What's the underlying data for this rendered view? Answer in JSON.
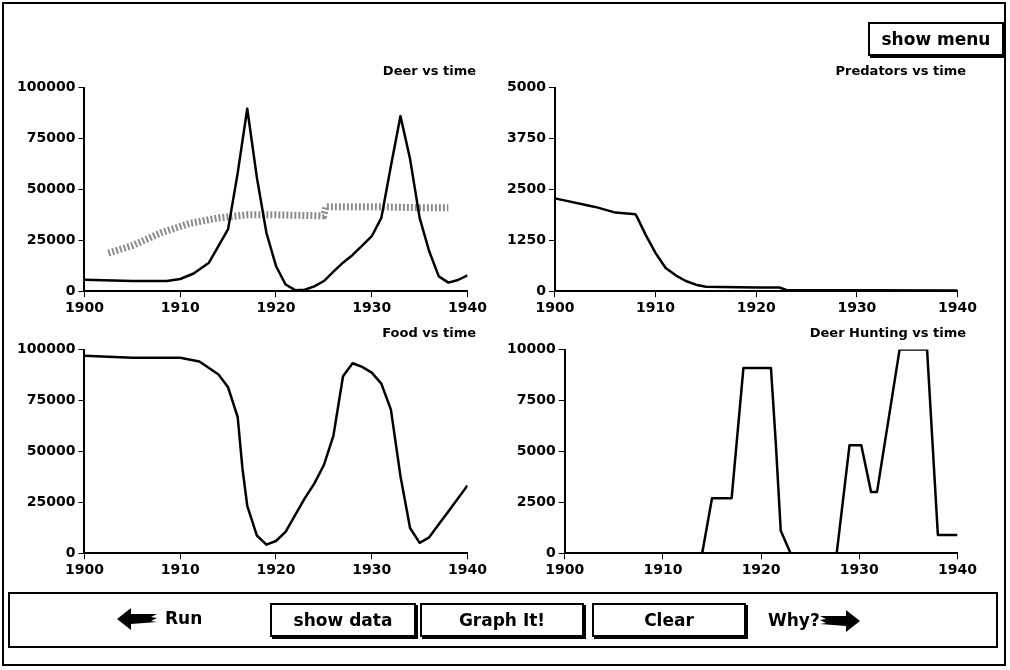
{
  "chart_data": [
    {
      "type": "line",
      "title": "Deer vs time",
      "xlim": [
        1900,
        1940
      ],
      "xticks": [
        1900,
        1910,
        1920,
        1930,
        1940
      ],
      "ylim": [
        0,
        100000
      ],
      "yticks": [
        0,
        25000,
        50000,
        75000,
        100000
      ],
      "marker": "none",
      "series": [
        {
          "color": "#000000",
          "line_style": "solid",
          "x": [
            1900,
            1905,
            1908.6,
            1910,
            1911.4,
            1913,
            1915,
            1916,
            1917,
            1918,
            1919,
            1920,
            1921,
            1922,
            1923,
            1924,
            1925,
            1926,
            1927,
            1928,
            1929,
            1930,
            1931,
            1932,
            1933,
            1934,
            1935,
            1936,
            1937,
            1938,
            1939,
            1940
          ],
          "values": [
            5600,
            5000,
            5000,
            6000,
            8700,
            14000,
            30500,
            58000,
            89600,
            56000,
            28700,
            12400,
            3300,
            500,
            700,
            2400,
            5000,
            9600,
            14000,
            17800,
            22400,
            27000,
            36000,
            61500,
            86000,
            65000,
            36000,
            19600,
            7300,
            4200,
            5500,
            7800
          ]
        },
        {
          "color": "#8c8c8c",
          "line_style": "dotted",
          "x": [
            1902.5,
            1905,
            1908,
            1911,
            1914,
            1917,
            1920,
            1925,
            1925.2,
            1930,
            1935,
            1938
          ],
          "values": [
            18700,
            22400,
            28700,
            33300,
            36000,
            37500,
            37500,
            37000,
            41500,
            41500,
            41000,
            41000
          ]
        }
      ]
    },
    {
      "type": "line",
      "title": "Predators vs time",
      "xlim": [
        1900,
        1940
      ],
      "xticks": [
        1900,
        1910,
        1920,
        1930,
        1940
      ],
      "ylim": [
        0,
        5000
      ],
      "yticks": [
        0,
        1250,
        2500,
        3750,
        5000
      ],
      "marker": "none",
      "series": [
        {
          "color": "#000000",
          "line_style": "solid",
          "x": [
            1900,
            1904,
            1906,
            1908,
            1908.2,
            1909,
            1910,
            1911,
            1912,
            1913,
            1914,
            1915,
            1920,
            1922.3,
            1923,
            1940
          ],
          "values": [
            2280,
            2070,
            1930,
            1890,
            1800,
            1390,
            935,
            570,
            390,
            250,
            160,
            110,
            90,
            90,
            30,
            20
          ]
        }
      ]
    },
    {
      "type": "line",
      "title": "Food vs time",
      "xlim": [
        1900,
        1940
      ],
      "xticks": [
        1900,
        1910,
        1920,
        1930,
        1940
      ],
      "ylim": [
        0,
        100000
      ],
      "yticks": [
        0,
        25000,
        50000,
        75000,
        100000
      ],
      "marker": "none",
      "series": [
        {
          "color": "#000000",
          "line_style": "solid",
          "x": [
            1900,
            1905,
            1910,
            1912,
            1914,
            1915,
            1916,
            1916.5,
            1917,
            1918,
            1919,
            1920,
            1921,
            1922,
            1923,
            1924,
            1925,
            1926,
            1927,
            1928,
            1929,
            1930,
            1931,
            1932,
            1933,
            1934,
            1935,
            1936,
            1937,
            1938,
            1939,
            1940
          ],
          "values": [
            97000,
            96000,
            96000,
            94200,
            87800,
            81500,
            66900,
            41500,
            23300,
            8700,
            4200,
            6000,
            10500,
            18700,
            26900,
            34200,
            43300,
            57800,
            86900,
            93300,
            91500,
            88700,
            83300,
            70500,
            37800,
            12400,
            5100,
            7800,
            14200,
            20500,
            26900,
            33300
          ]
        }
      ]
    },
    {
      "type": "line",
      "title": "Deer Hunting vs time",
      "xlim": [
        1900,
        1940
      ],
      "xticks": [
        1900,
        1910,
        1920,
        1930,
        1940
      ],
      "ylim": [
        0,
        10000
      ],
      "yticks": [
        0,
        2500,
        5000,
        7500,
        10000
      ],
      "marker": "none",
      "series": [
        {
          "color": "#000000",
          "line_style": "solid",
          "x": [
            1900,
            1914,
            1915,
            1917,
            1918.2,
            1921,
            1921.5,
            1922,
            1923,
            1927.7,
            1929,
            1930.2,
            1931.2,
            1931.8,
            1934.1,
            1936.9,
            1938,
            1940
          ],
          "values": [
            0,
            0,
            2700,
            2700,
            9100,
            9100,
            5370,
            1100,
            0,
            0,
            5300,
            5300,
            3000,
            3000,
            10000,
            10000,
            900,
            900
          ]
        }
      ]
    },
    {
      "type": "other",
      "annotations": [
        "show menu",
        "Run",
        "show data",
        "Graph It!",
        "Clear",
        "Why?"
      ]
    }
  ]
}
